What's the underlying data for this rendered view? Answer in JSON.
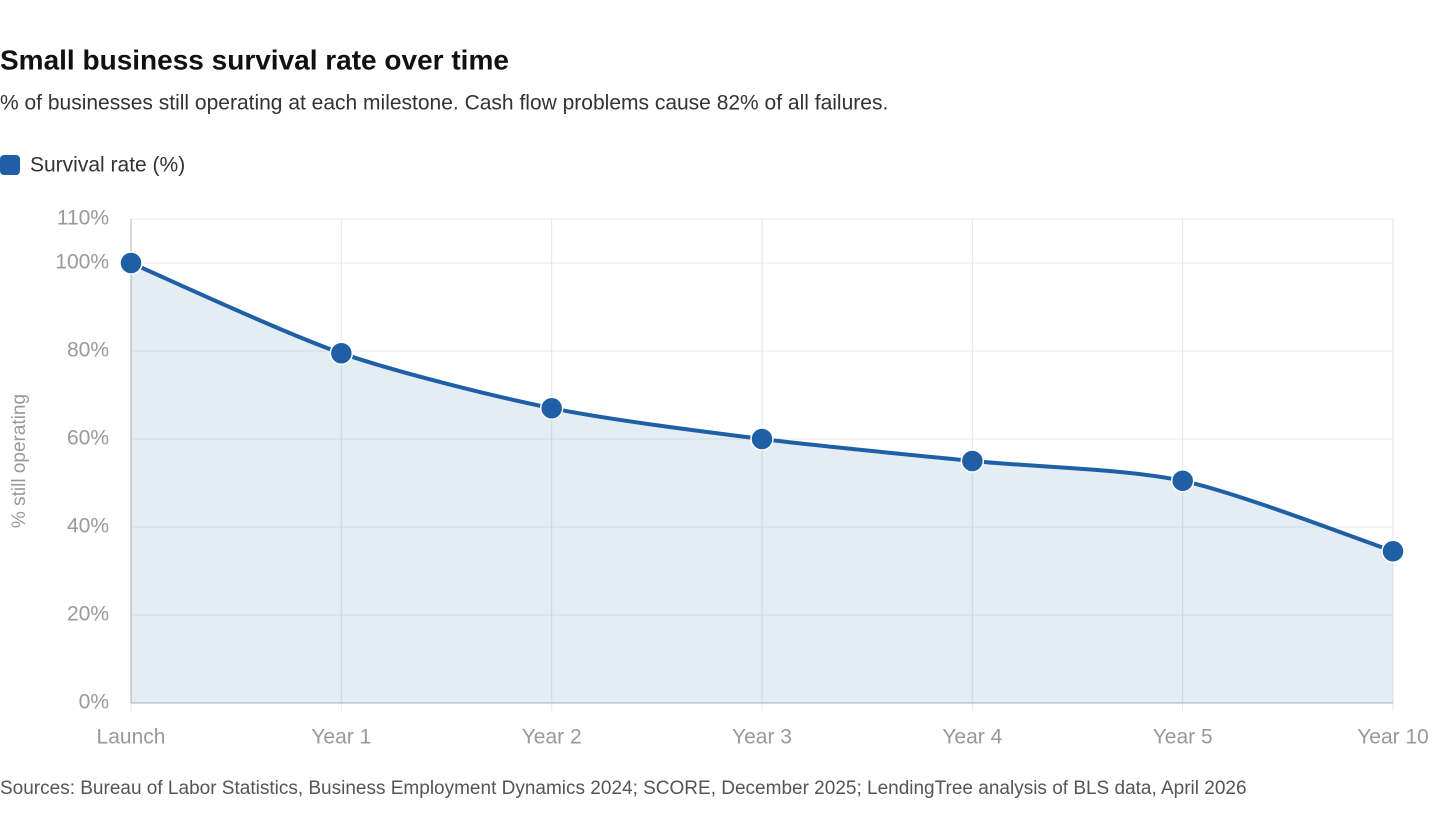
{
  "chart_data": {
    "type": "line",
    "title": "Small business survival rate over time",
    "subtitle": "% of businesses still operating at each milestone. Cash flow problems cause 82% of all failures.",
    "y_label": "% still operating",
    "source": "Sources: Bureau of Labor Statistics, Business Employment Dynamics 2024; SCORE, December 2025; LendingTree analysis of BLS data, April 2026",
    "categories": [
      "Launch",
      "Year 1",
      "Year 2",
      "Year 3",
      "Year 4",
      "Year 5",
      "Year 10"
    ],
    "series": [
      {
        "name": "Survival rate (%)",
        "color": "#1f5fa6",
        "values": [
          100,
          79.5,
          67,
          60,
          55,
          50.5,
          34.5
        ]
      }
    ],
    "ylim": [
      0,
      110
    ],
    "yticks": [
      {
        "value": 0,
        "label": "0%"
      },
      {
        "value": 20,
        "label": "20%"
      },
      {
        "value": 40,
        "label": "40%"
      },
      {
        "value": 60,
        "label": "60%"
      },
      {
        "value": 80,
        "label": "80%"
      },
      {
        "value": 100,
        "label": "100%"
      },
      {
        "value": 110,
        "label": "110%"
      }
    ],
    "grid": true,
    "area_fill": true,
    "legend": "top-left"
  }
}
